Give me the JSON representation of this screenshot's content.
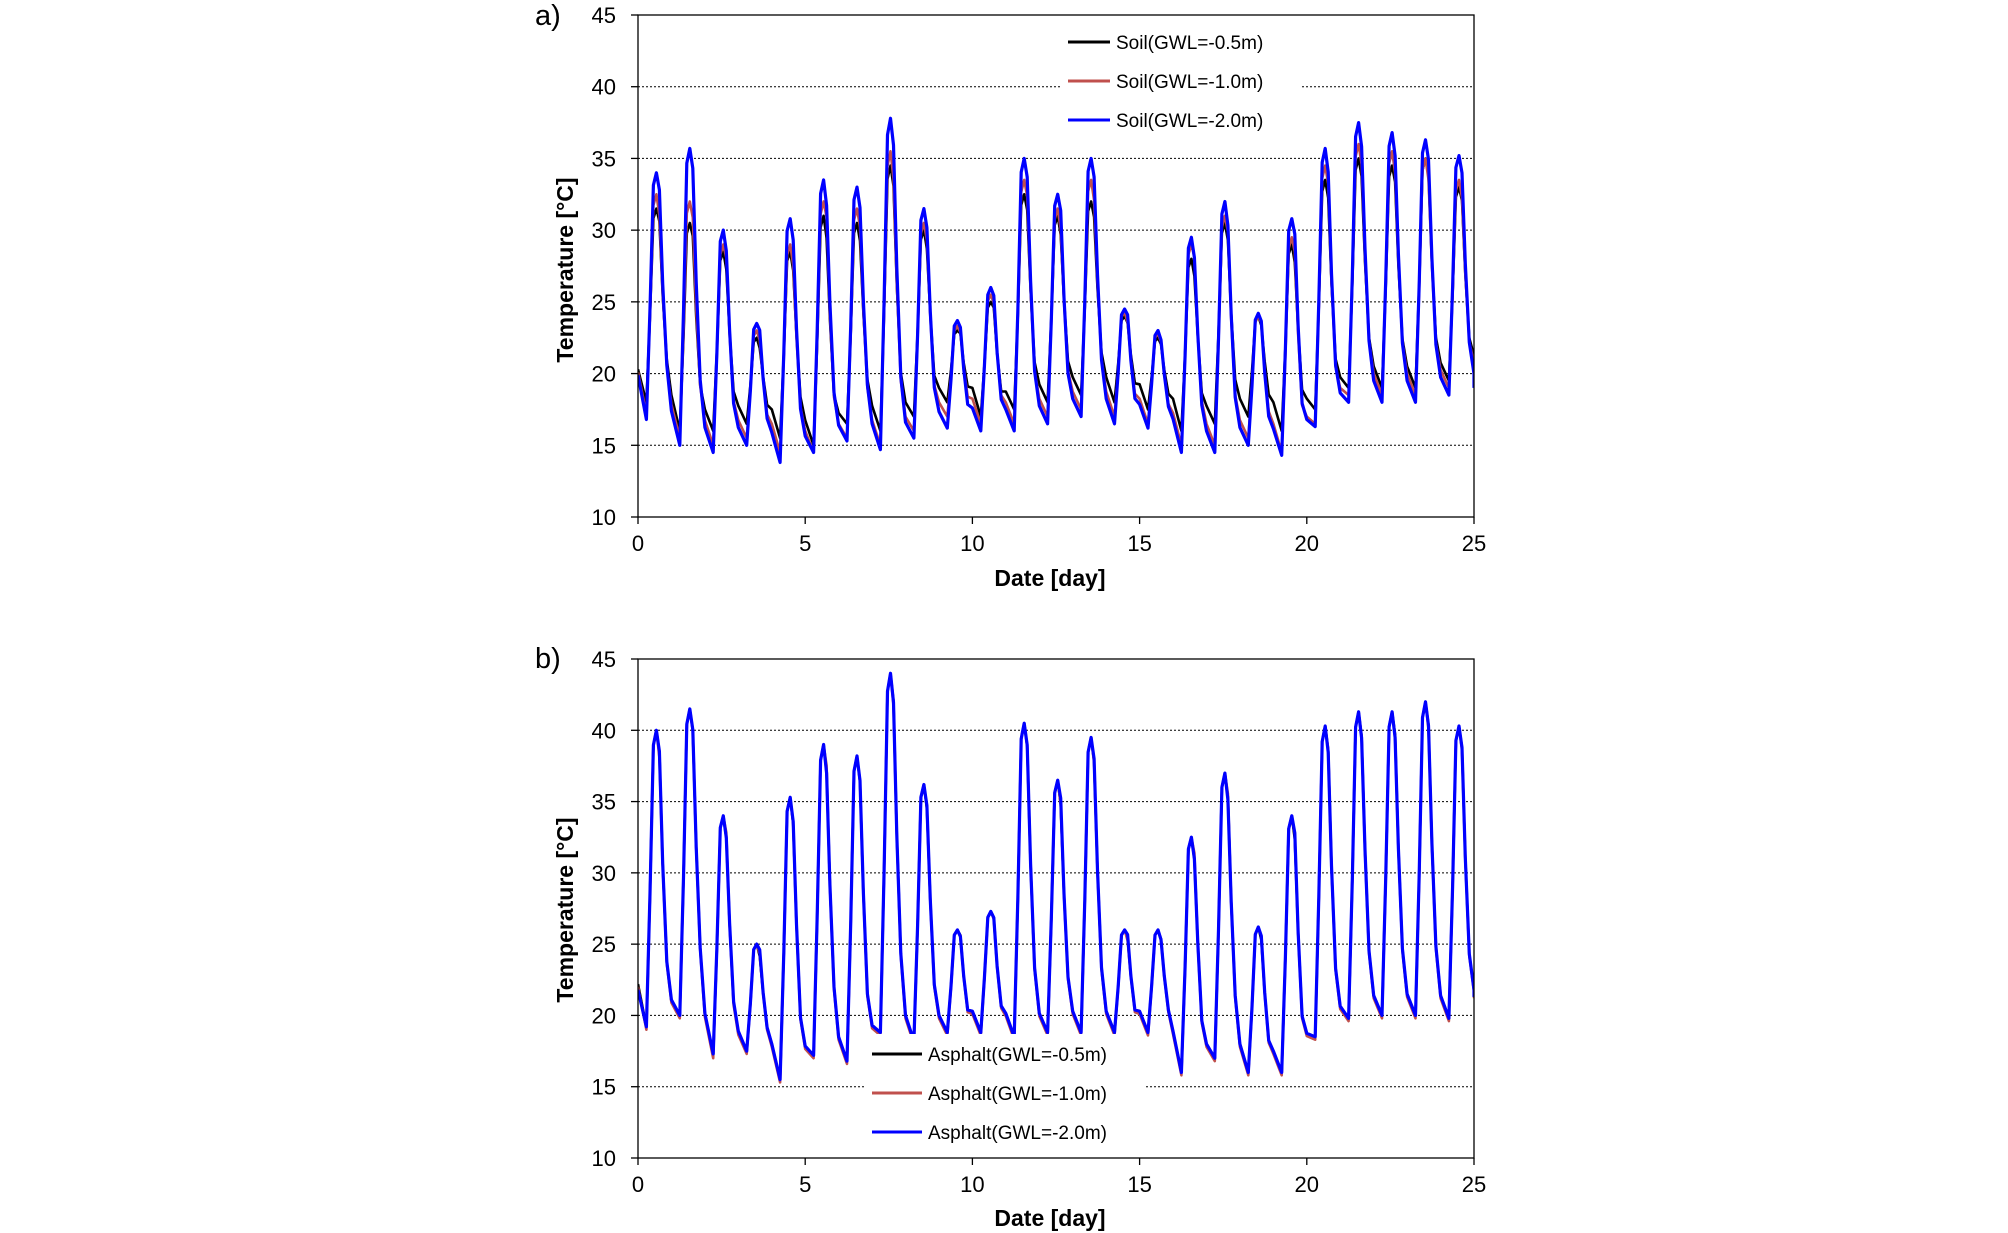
{
  "chart_data": [
    {
      "type": "line",
      "panel_label": "a)",
      "xlabel": "Date [day]",
      "ylabel": "Temperature [°C]",
      "xlim": [
        0,
        25
      ],
      "ylim": [
        10,
        45
      ],
      "xticks": [
        0,
        5,
        10,
        15,
        20,
        25
      ],
      "yticks": [
        10,
        15,
        20,
        25,
        30,
        35,
        40,
        45
      ],
      "grid": "horizontal dotted",
      "legend_position": "top-right",
      "series": [
        {
          "name": "Soil(GWL=-0.5m)",
          "color": "#000000",
          "peaks": [
            31.5,
            30.5,
            28.5,
            22.5,
            28.5,
            31.0,
            30.5,
            34.5,
            30.0,
            23.0,
            25.0,
            32.5,
            31.0,
            32.0,
            24.0,
            22.5,
            28.0,
            30.5,
            24.0,
            29.0,
            33.5,
            35.0,
            34.5,
            35.0,
            33.0
          ],
          "troughs": [
            18.0,
            16.0,
            16.0,
            16.5,
            15.5,
            15.0,
            16.5,
            16.0,
            17.0,
            18.0,
            17.0,
            17.5,
            18.0,
            18.5,
            18.0,
            17.5,
            16.0,
            16.5,
            17.0,
            16.0,
            17.5,
            19.0,
            19.0,
            19.0,
            19.5,
            20.0
          ]
        },
        {
          "name": "Soil(GWL=-1.0m)",
          "color": "#c0504d",
          "peaks": [
            32.5,
            32.0,
            29.0,
            23.0,
            29.0,
            32.0,
            31.5,
            35.5,
            30.5,
            23.3,
            25.5,
            33.5,
            31.5,
            33.5,
            24.3,
            22.8,
            29.0,
            31.0,
            24.0,
            29.5,
            34.5,
            36.0,
            35.5,
            35.0,
            33.5
          ],
          "troughs": [
            17.2,
            15.5,
            15.0,
            15.5,
            14.5,
            14.5,
            15.5,
            15.0,
            16.0,
            17.0,
            16.5,
            16.5,
            17.0,
            17.5,
            17.0,
            16.5,
            15.0,
            15.0,
            15.5,
            14.5,
            16.5,
            18.5,
            18.5,
            18.5,
            19.0,
            19.5
          ]
        },
        {
          "name": "Soil(GWL=-2.0m)",
          "color": "#0000ff",
          "peaks": [
            34.0,
            35.7,
            30.0,
            23.5,
            30.8,
            33.5,
            33.0,
            37.8,
            31.5,
            23.7,
            26.0,
            35.0,
            32.5,
            35.0,
            24.5,
            23.0,
            29.5,
            32.0,
            24.2,
            30.8,
            35.7,
            37.5,
            36.8,
            36.3,
            35.2
          ],
          "troughs": [
            16.8,
            15.0,
            14.5,
            15.0,
            13.8,
            14.5,
            15.3,
            14.7,
            15.5,
            16.2,
            16.0,
            16.0,
            16.5,
            17.0,
            16.5,
            16.2,
            14.5,
            14.5,
            15.0,
            14.3,
            16.3,
            18.0,
            18.0,
            18.0,
            18.5,
            18.5
          ]
        }
      ]
    },
    {
      "type": "line",
      "panel_label": "b)",
      "xlabel": "Date [day]",
      "ylabel": "Temperature [°C]",
      "xlim": [
        0,
        25
      ],
      "ylim": [
        10,
        45
      ],
      "xticks": [
        0,
        5,
        10,
        15,
        20,
        25
      ],
      "yticks": [
        10,
        15,
        20,
        25,
        30,
        35,
        40,
        45
      ],
      "grid": "horizontal dotted",
      "legend_position": "bottom-center",
      "series": [
        {
          "name": "Asphalt(GWL=-0.5m)",
          "color": "#000000",
          "peaks": [
            40.0,
            41.5,
            34.0,
            25.0,
            35.3,
            39.0,
            38.2,
            44.0,
            36.2,
            26.0,
            27.3,
            40.5,
            36.5,
            39.5,
            26.0,
            26.0,
            32.5,
            37.0,
            26.2,
            34.0,
            40.3,
            41.3,
            41.3,
            42.0,
            40.3
          ],
          "troughs": [
            19.2,
            20.0,
            17.2,
            17.5,
            15.5,
            17.2,
            16.8,
            18.8,
            18.2,
            18.8,
            18.8,
            18.5,
            18.8,
            18.8,
            18.8,
            18.8,
            16.0,
            17.0,
            16.0,
            16.0,
            18.5,
            19.8,
            20.0,
            20.0,
            19.8,
            20.8
          ]
        },
        {
          "name": "Asphalt(GWL=-1.0m)",
          "color": "#c0504d",
          "peaks": [
            40.0,
            41.5,
            34.0,
            25.0,
            35.3,
            39.0,
            38.2,
            44.0,
            36.2,
            26.0,
            27.3,
            40.5,
            36.5,
            39.5,
            26.0,
            26.0,
            32.5,
            37.0,
            26.2,
            34.0,
            40.3,
            41.3,
            41.3,
            42.0,
            40.3
          ],
          "troughs": [
            19.0,
            19.8,
            17.0,
            17.3,
            15.3,
            17.0,
            16.6,
            18.6,
            18.0,
            18.6,
            18.6,
            18.3,
            18.6,
            18.6,
            18.6,
            18.6,
            15.8,
            16.8,
            15.8,
            15.8,
            18.3,
            19.6,
            19.8,
            19.8,
            19.6,
            20.7
          ]
        },
        {
          "name": "Asphalt(GWL=-2.0m)",
          "color": "#0000ff",
          "peaks": [
            40.0,
            41.5,
            34.0,
            25.0,
            35.3,
            39.0,
            38.2,
            44.0,
            36.2,
            26.0,
            27.3,
            40.5,
            36.5,
            39.5,
            26.0,
            26.0,
            32.5,
            37.0,
            26.2,
            34.0,
            40.3,
            41.3,
            41.3,
            42.0,
            40.3
          ],
          "troughs": [
            19.2,
            20.0,
            17.3,
            17.5,
            15.5,
            17.2,
            16.8,
            18.8,
            18.2,
            18.8,
            18.8,
            18.5,
            18.8,
            18.8,
            18.8,
            18.8,
            16.0,
            17.0,
            16.0,
            16.0,
            18.5,
            19.8,
            20.0,
            20.0,
            19.8,
            20.8
          ]
        }
      ]
    }
  ]
}
